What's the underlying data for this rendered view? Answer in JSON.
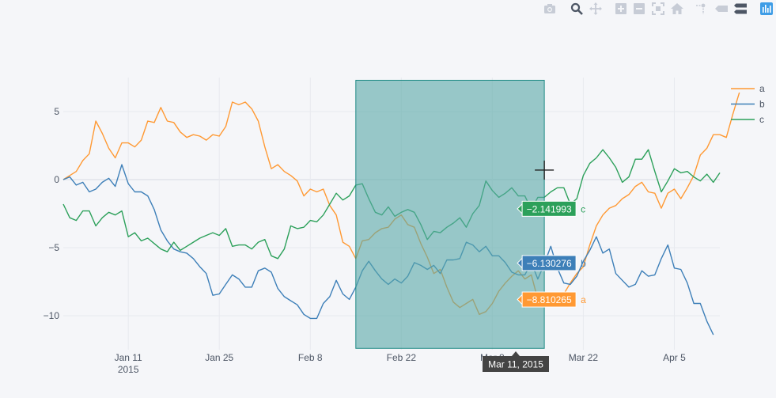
{
  "modebar": {
    "buttons": [
      {
        "name": "camera-icon"
      },
      {
        "name": "zoom-icon"
      },
      {
        "name": "pan-icon"
      },
      {
        "name": "zoom-in-icon"
      },
      {
        "name": "zoom-out-icon"
      },
      {
        "name": "autoscale-icon"
      },
      {
        "name": "home-icon"
      },
      {
        "name": "spike-lines-icon"
      },
      {
        "name": "hover-closest-icon"
      },
      {
        "name": "hover-compare-icon"
      },
      {
        "name": "plotly-logo-icon"
      }
    ]
  },
  "chart_data": {
    "type": "line",
    "x_start": "2015-01-01",
    "x_end": "2015-04-12",
    "xlim": [
      "2015-01-01",
      "2015-04-12"
    ],
    "ylim": [
      -12.5,
      7.5
    ],
    "grid": true,
    "legend_position": "top-right",
    "x_ticks": [
      {
        "date": "2015-01-11",
        "label": "Jan 11",
        "sublabel": "2015"
      },
      {
        "date": "2015-01-25",
        "label": "Jan 25",
        "sublabel": ""
      },
      {
        "date": "2015-02-08",
        "label": "Feb 8",
        "sublabel": ""
      },
      {
        "date": "2015-02-22",
        "label": "Feb 22",
        "sublabel": ""
      },
      {
        "date": "2015-03-08",
        "label": "Mar 8",
        "sublabel": ""
      },
      {
        "date": "2015-03-22",
        "label": "Mar 22",
        "sublabel": ""
      },
      {
        "date": "2015-04-05",
        "label": "Apr 5",
        "sublabel": ""
      }
    ],
    "y_ticks": [
      {
        "value": 5,
        "label": "5"
      },
      {
        "value": 0,
        "label": "0"
      },
      {
        "value": -5,
        "label": "−5"
      },
      {
        "value": -10,
        "label": "−10"
      }
    ],
    "series": [
      {
        "name": "a",
        "color": "#ff9933",
        "values": [
          0,
          0.3,
          0.6,
          1.4,
          1.9,
          4.3,
          3.4,
          2.3,
          1.6,
          2.7,
          2.7,
          2.4,
          2.9,
          4.3,
          4.2,
          5.3,
          4.3,
          4.2,
          3.5,
          3.1,
          3.3,
          3.2,
          2.9,
          3.3,
          3.2,
          3.9,
          5.7,
          5.5,
          5.7,
          5.2,
          4.3,
          2.4,
          0.8,
          1.1,
          0.6,
          0.3,
          -0.1,
          -1.2,
          -0.7,
          -0.9,
          -0.7,
          -1.9,
          -2.6,
          -4.6,
          -4.9,
          -5.8,
          -4.5,
          -4.4,
          -3.9,
          -3.6,
          -3.5,
          -2.9,
          -2.6,
          -3.3,
          -3.5,
          -4.7,
          -5.7,
          -6.9,
          -6.6,
          -7.9,
          -9,
          -9.4,
          -9.1,
          -8.8,
          -9.9,
          -9.7,
          -9.1,
          -8.2,
          -7.6,
          -7.1,
          -6.7,
          -7.3,
          -7,
          -8.8,
          -8.4,
          -8.9,
          -9.3,
          -8.4,
          -7.6,
          -6.9,
          -6.4,
          -4.8,
          -3.4,
          -2.6,
          -2.1,
          -1.9,
          -1.4,
          -1.1,
          -0.5,
          -0.2,
          -0.9,
          -1,
          -2.1,
          -1,
          -0.7,
          -1.4,
          -0.6,
          0.3,
          1.8,
          2.3,
          3.3,
          3.3,
          3.1,
          4.8,
          6.4
        ]
      },
      {
        "name": "b",
        "color": "#3d7fb8",
        "values": [
          0,
          0.2,
          -0.4,
          -0.2,
          -0.9,
          -0.7,
          -0.2,
          0.1,
          -0.5,
          1.1,
          -0.3,
          -0.9,
          -0.9,
          -1.2,
          -2.2,
          -3.7,
          -4.5,
          -5.1,
          -5.3,
          -5.4,
          -5.8,
          -6.4,
          -6.9,
          -8.5,
          -8.4,
          -7.7,
          -7,
          -7.3,
          -7.9,
          -7.9,
          -6.7,
          -6.5,
          -6.8,
          -8,
          -8.6,
          -8.9,
          -9.2,
          -9.9,
          -10.2,
          -10.2,
          -9.1,
          -8.6,
          -7.4,
          -8.4,
          -8.8,
          -7.9,
          -6.7,
          -6,
          -6.7,
          -7.3,
          -7.7,
          -7.3,
          -7.6,
          -7.1,
          -6.1,
          -6.3,
          -6.6,
          -6.3,
          -6.9,
          -5.9,
          -5.9,
          -5.8,
          -4.6,
          -4.8,
          -5.3,
          -4.9,
          -5.6,
          -5.6,
          -6.1,
          -6.8,
          -7,
          -7,
          -6.1,
          -7.3,
          -6.2,
          -4.9,
          -6.5,
          -7.6,
          -7.7,
          -7.1,
          -6,
          -5.2,
          -4.2,
          -5.4,
          -5.1,
          -6.9,
          -7.4,
          -7.9,
          -7.7,
          -6.7,
          -7.1,
          -7,
          -5.8,
          -4.8,
          -6.5,
          -6.6,
          -7.6,
          -9.1,
          -9.1,
          -10.4,
          -11.4
        ]
      },
      {
        "name": "c",
        "color": "#2ca05a",
        "values": [
          -1.8,
          -2.8,
          -3,
          -2.3,
          -2.3,
          -3.4,
          -2.8,
          -2.4,
          -2.6,
          -2.3,
          -4.2,
          -3.9,
          -4.5,
          -4.3,
          -4.7,
          -5.1,
          -5.3,
          -4.6,
          -5.2,
          -4.9,
          -4.6,
          -4.3,
          -4.1,
          -3.9,
          -4.1,
          -3.6,
          -4.9,
          -4.8,
          -4.8,
          -5.1,
          -4.6,
          -4.4,
          -5.6,
          -5.8,
          -5.1,
          -3.4,
          -3.6,
          -3.5,
          -3,
          -3.1,
          -2.6,
          -1.8,
          -1,
          -1.5,
          -1.2,
          -0.4,
          -0.3,
          -1.4,
          -2.4,
          -2.6,
          -2,
          -2.7,
          -2.4,
          -2.2,
          -2.4,
          -3.3,
          -4.4,
          -3.8,
          -3.9,
          -3.5,
          -3.2,
          -2.8,
          -3.5,
          -2.5,
          -1.9,
          -0.1,
          -0.8,
          -1.3,
          -1,
          -0.6,
          -1.2,
          -1.2,
          -2.2,
          -1.3,
          -1.3,
          -0.9,
          -0.6,
          -0.6,
          -1.8,
          -1.4,
          0.3,
          1.2,
          1.6,
          2.2,
          1.6,
          0.9,
          -0.2,
          0.2,
          1.5,
          1.5,
          2.2,
          0.6,
          -0.9,
          -0.1,
          0.8,
          0.5,
          0.6,
          0.2,
          -0.1,
          0.4,
          -0.2,
          0.5
        ]
      }
    ],
    "selection": {
      "x0": "2015-02-15",
      "x1": "2015-03-16",
      "y0": -12.4,
      "y1": 7.3,
      "color": "#58a8a6"
    },
    "hover": {
      "date_label": "Mar 11, 2015",
      "cursor_date": "2015-03-16",
      "cursor_value": 0.7,
      "labels": [
        {
          "series": "c",
          "text": "−2.141993",
          "name": "c",
          "value": -2.141993,
          "color": "#2ca05a"
        },
        {
          "series": "b",
          "text": "−6.130276",
          "name": "b",
          "value": -6.130276,
          "color": "#3d7fb8"
        },
        {
          "series": "a",
          "text": "−8.810265",
          "name": "a",
          "value": -8.810265,
          "color": "#ff9933"
        }
      ]
    }
  }
}
